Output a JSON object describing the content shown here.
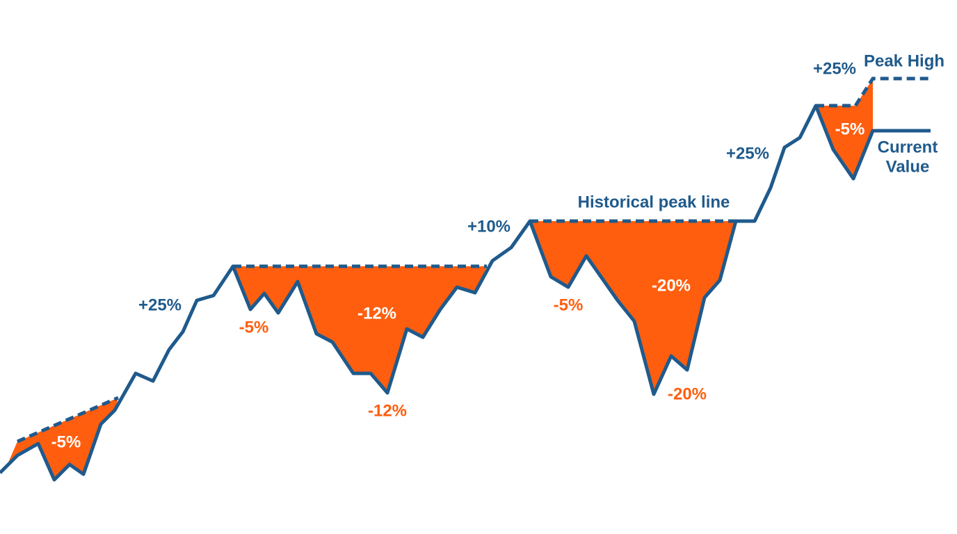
{
  "labels": [
    "-5%",
    "+25%",
    "-5%",
    "-12%",
    "-12%",
    "+10%",
    "Historical peak line",
    "-5%",
    "-20%",
    "-20%",
    "+25%",
    "+25%",
    "Peak High",
    "-5%",
    "Current",
    "Value"
  ]
}
